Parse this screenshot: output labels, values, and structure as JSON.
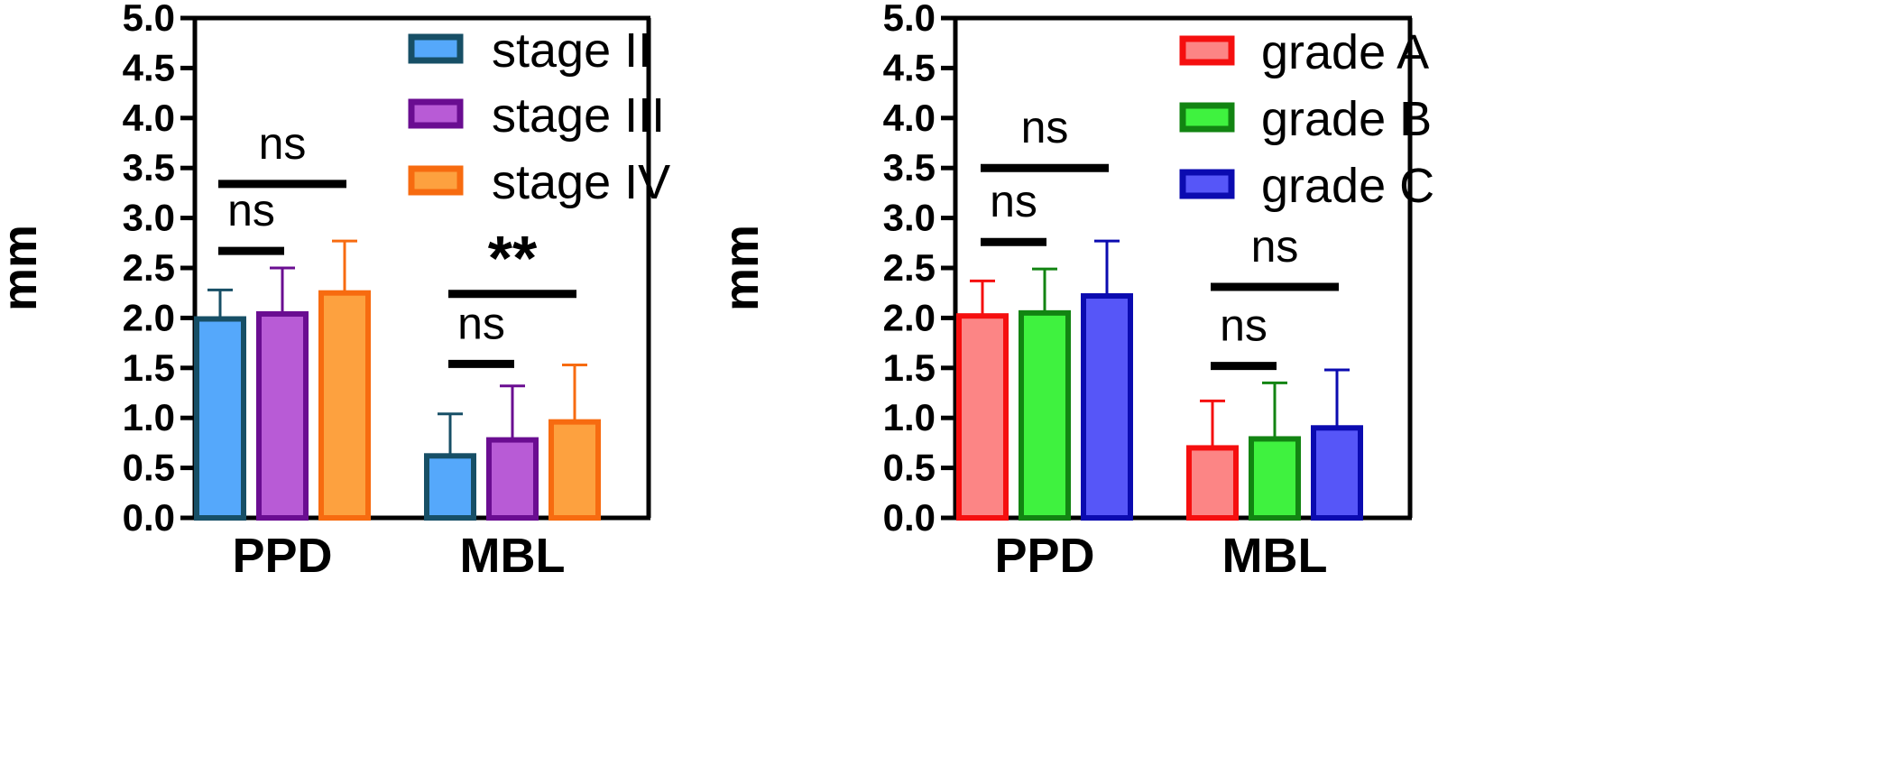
{
  "chart_data": [
    {
      "type": "bar",
      "categories": [
        "PPD",
        "MBL"
      ],
      "ylabel": "mm",
      "ylim": [
        0,
        5.0
      ],
      "yticks": [
        "0.0",
        "0.5",
        "1.0",
        "1.5",
        "2.0",
        "2.5",
        "3.0",
        "3.5",
        "4.0",
        "4.5",
        "5.0"
      ],
      "legend_position": "top-right",
      "series": [
        {
          "name": "stage II",
          "values": [
            1.99,
            0.62
          ],
          "errors": [
            0.29,
            0.42
          ],
          "fill": "#55a8fb",
          "edge": "#174f66"
        },
        {
          "name": "stage III",
          "values": [
            2.04,
            0.78
          ],
          "errors": [
            0.46,
            0.54
          ],
          "fill": "#b85bd6",
          "edge": "#6a0d91"
        },
        {
          "name": "stage IV",
          "values": [
            2.25,
            0.96
          ],
          "errors": [
            0.52,
            0.57
          ],
          "fill": "#fda13f",
          "edge": "#f76b10"
        }
      ],
      "significance": [
        {
          "category": 0,
          "from": 0,
          "to": 1,
          "y": 2.67,
          "label": "ns"
        },
        {
          "category": 0,
          "from": 0,
          "to": 2,
          "y": 3.34,
          "label": "ns"
        },
        {
          "category": 1,
          "from": 0,
          "to": 1,
          "y": 1.54,
          "label": "ns"
        },
        {
          "category": 1,
          "from": 0,
          "to": 2,
          "y": 2.24,
          "label": "**"
        }
      ]
    },
    {
      "type": "bar",
      "categories": [
        "PPD",
        "MBL"
      ],
      "ylabel": "mm",
      "ylim": [
        0,
        5.0
      ],
      "yticks": [
        "0.0",
        "0.5",
        "1.0",
        "1.5",
        "2.0",
        "2.5",
        "3.0",
        "3.5",
        "4.0",
        "4.5",
        "5.0"
      ],
      "legend_position": "top-right",
      "series": [
        {
          "name": "grade A",
          "values": [
            2.02,
            0.7
          ],
          "errors": [
            0.35,
            0.47
          ],
          "fill": "#fc8585",
          "edge": "#f50f0f"
        },
        {
          "name": "grade B",
          "values": [
            2.05,
            0.79
          ],
          "errors": [
            0.44,
            0.56
          ],
          "fill": "#3ff23f",
          "edge": "#128412"
        },
        {
          "name": "grade C",
          "values": [
            2.22,
            0.9
          ],
          "errors": [
            0.55,
            0.58
          ],
          "fill": "#5656f8",
          "edge": "#0b0bb0"
        }
      ],
      "significance": [
        {
          "category": 0,
          "from": 0,
          "to": 1,
          "y": 2.76,
          "label": "ns"
        },
        {
          "category": 0,
          "from": 0,
          "to": 2,
          "y": 3.5,
          "label": "ns"
        },
        {
          "category": 1,
          "from": 0,
          "to": 1,
          "y": 1.52,
          "label": "ns"
        },
        {
          "category": 1,
          "from": 0,
          "to": 2,
          "y": 2.31,
          "label": "ns"
        }
      ]
    }
  ]
}
